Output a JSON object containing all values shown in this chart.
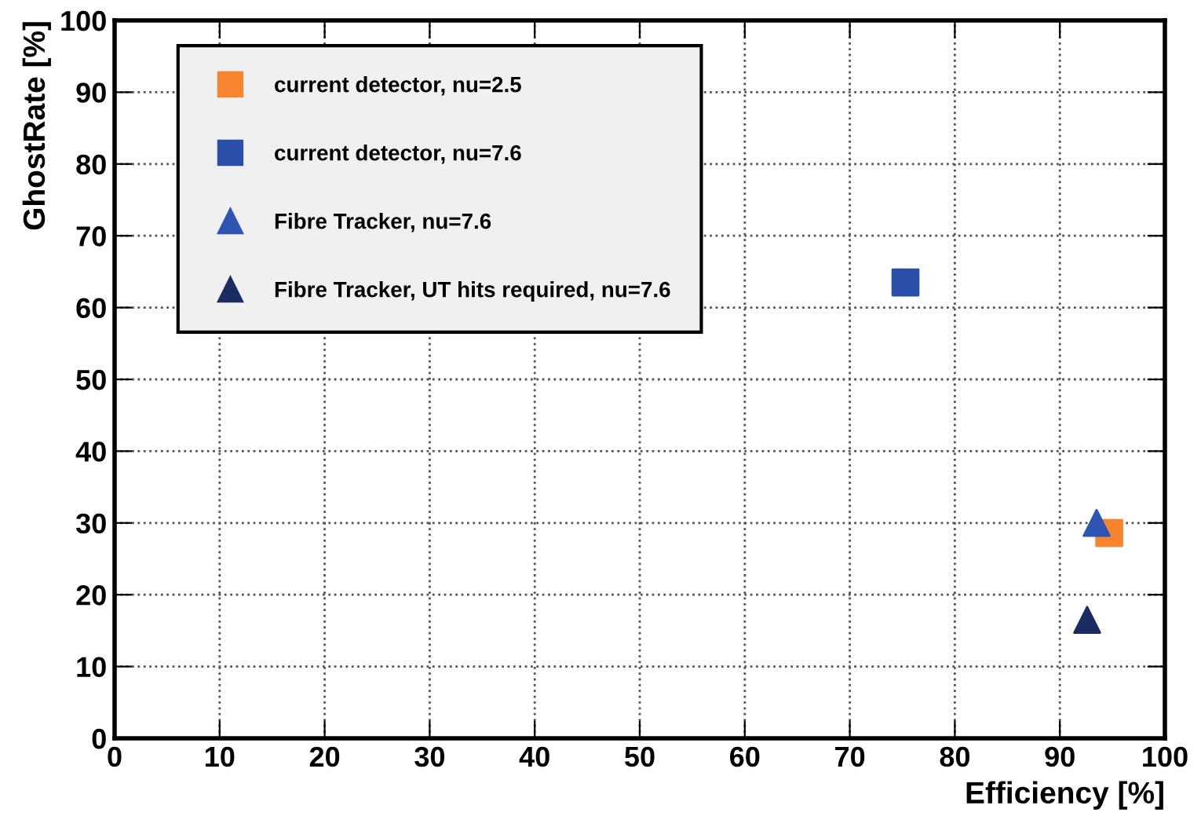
{
  "chart_data": {
    "type": "scatter",
    "xlabel": "Efficiency [%]",
    "ylabel": "GhostRate [%]",
    "xlim": [
      0,
      100
    ],
    "ylim": [
      0,
      100
    ],
    "xticks": [
      0,
      10,
      20,
      30,
      40,
      50,
      60,
      70,
      80,
      90,
      100
    ],
    "yticks": [
      0,
      10,
      20,
      30,
      40,
      50,
      60,
      70,
      80,
      90,
      100
    ],
    "grid": true,
    "legend": "top left",
    "series": [
      {
        "name": "current detector, nu=2.5",
        "color": "#f7852f",
        "marker": "square",
        "x": [
          94.7
        ],
        "values": [
          28.6
        ]
      },
      {
        "name": "current detector, nu=7.6",
        "color": "#2a4fa8",
        "marker": "square",
        "x": [
          75.3
        ],
        "values": [
          63.5
        ]
      },
      {
        "name": "Fibre Tracker, nu=7.6",
        "color": "#2f55b4",
        "marker": "triangle",
        "x": [
          93.5
        ],
        "values": [
          30
        ]
      },
      {
        "name": "Fibre Tracker, UT hits required, nu=7.6",
        "color": "#1c2c62",
        "marker": "triangle",
        "x": [
          92.6
        ],
        "values": [
          16.5
        ]
      }
    ]
  }
}
